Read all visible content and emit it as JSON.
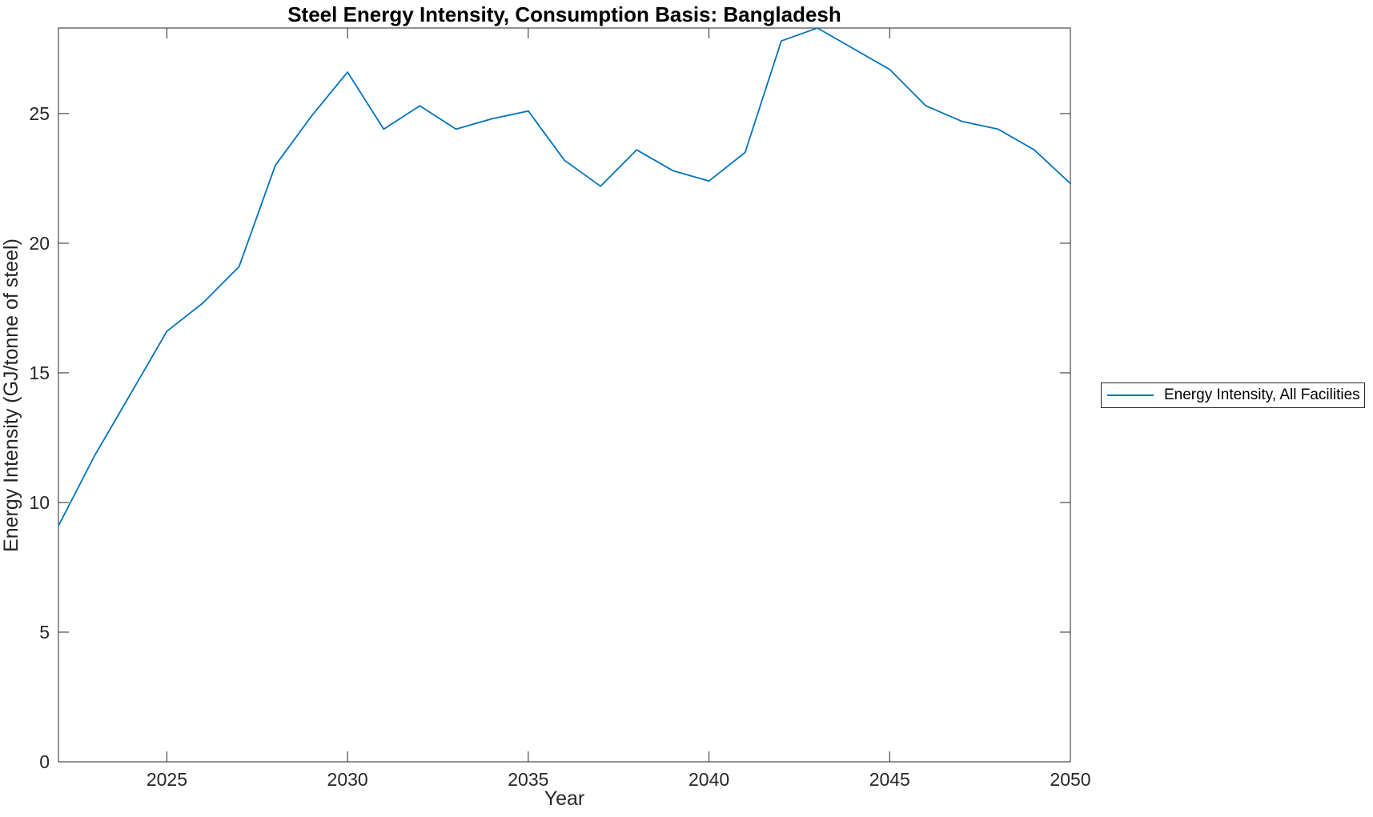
{
  "chart_data": {
    "type": "line",
    "title": "Steel Energy Intensity, Consumption Basis: Bangladesh",
    "xlabel": "Year",
    "ylabel": "Energy Intensity (GJ/tonne of steel)",
    "xlim": [
      2022,
      2050
    ],
    "ylim": [
      0,
      28.3
    ],
    "x_ticks": [
      2025,
      2030,
      2035,
      2040,
      2045,
      2050
    ],
    "y_ticks": [
      0,
      5,
      10,
      15,
      20,
      25
    ],
    "grid": false,
    "box": true,
    "legend_position": "outside-right",
    "x": [
      2022,
      2023,
      2024,
      2025,
      2026,
      2027,
      2028,
      2029,
      2030,
      2031,
      2032,
      2033,
      2034,
      2035,
      2036,
      2037,
      2038,
      2039,
      2040,
      2041,
      2042,
      2043,
      2044,
      2045,
      2046,
      2047,
      2048,
      2049,
      2050
    ],
    "series": [
      {
        "name": "Energy Intensity, All Facilities",
        "color": "#0072BD",
        "values": [
          9.1,
          11.8,
          14.2,
          16.6,
          17.7,
          19.1,
          23.0,
          24.9,
          26.6,
          24.4,
          25.3,
          24.4,
          24.8,
          25.1,
          23.2,
          22.2,
          23.6,
          22.8,
          22.4,
          23.5,
          27.8,
          28.3,
          27.5,
          26.7,
          25.3,
          24.7,
          24.4,
          23.6,
          22.3
        ]
      }
    ]
  },
  "colors": {
    "line": "#0072BD",
    "axes": "#262626",
    "title_text": "#000000",
    "background": "#ffffff"
  }
}
